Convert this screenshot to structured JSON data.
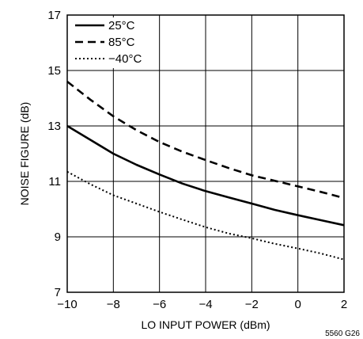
{
  "chart_data": {
    "type": "line",
    "xlabel": "LO INPUT POWER (dBm)",
    "ylabel": "NOISE FIGURE (dB)",
    "xlim": [
      -10,
      2
    ],
    "ylim": [
      7,
      17
    ],
    "x_ticks": [
      "−10",
      "−8",
      "−6",
      "−4",
      "−2",
      "0",
      "2"
    ],
    "y_ticks": [
      "7",
      "9",
      "11",
      "13",
      "15",
      "17"
    ],
    "grid": true,
    "legend_position": "top-left",
    "series": [
      {
        "name": "25°C",
        "style": "solid",
        "color": "#000000",
        "x": [
          -10,
          -9,
          -8,
          -7,
          -6,
          -5,
          -4,
          -3,
          -2,
          -1,
          0,
          1,
          2
        ],
        "y": [
          13.0,
          12.5,
          12.0,
          11.6,
          11.25,
          10.92,
          10.65,
          10.42,
          10.2,
          9.97,
          9.78,
          9.6,
          9.42
        ]
      },
      {
        "name": "85°C",
        "style": "dashed",
        "color": "#000000",
        "x": [
          -10,
          -9,
          -8,
          -7,
          -6,
          -5,
          -4,
          -3,
          -2,
          -1,
          0,
          1,
          2
        ],
        "y": [
          14.6,
          13.95,
          13.35,
          12.85,
          12.42,
          12.07,
          11.77,
          11.48,
          11.22,
          11.02,
          10.82,
          10.62,
          10.4
        ]
      },
      {
        "name": "−40°C",
        "style": "dotted",
        "color": "#000000",
        "x": [
          -10,
          -9,
          -8,
          -7,
          -6,
          -5,
          -4,
          -3,
          -2,
          -1,
          0,
          1,
          2
        ],
        "y": [
          11.35,
          10.9,
          10.5,
          10.2,
          9.9,
          9.62,
          9.35,
          9.12,
          8.95,
          8.75,
          8.58,
          8.4,
          8.18
        ]
      }
    ],
    "figure_code": "5560 G26"
  }
}
